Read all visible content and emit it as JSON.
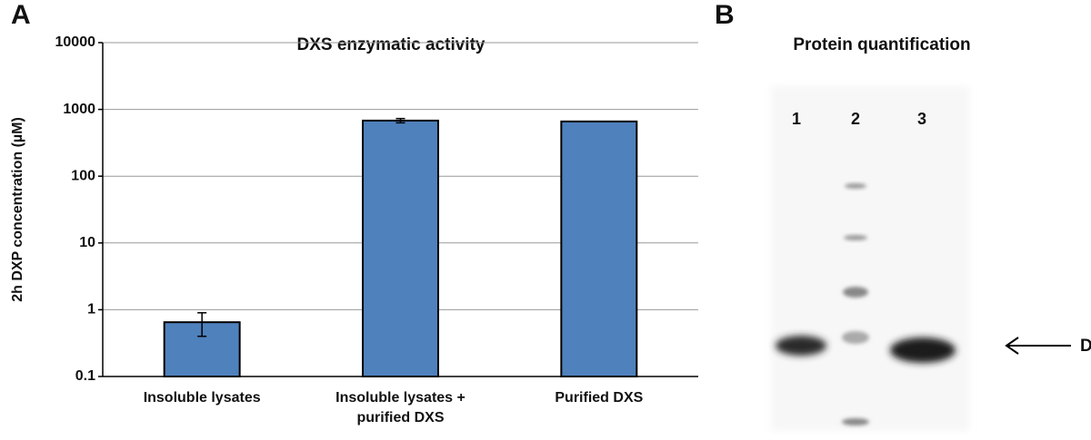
{
  "panel_labels": [
    "A",
    "B"
  ],
  "chart_data": {
    "type": "bar",
    "title": "DXS enzymatic activity",
    "y_label": "2h DXP concentration (µM)",
    "categories": [
      "Insoluble lysates",
      "Insoluble lysates +\npurified DXS",
      "Purified DXS"
    ],
    "values": [
      0.65,
      680,
      660
    ],
    "errors": [
      0.25,
      50,
      null
    ],
    "color": "#4f81bd",
    "log_scale": true,
    "ylim": [
      0.1,
      10000
    ],
    "yticks": [
      0.1,
      1,
      10,
      100,
      1000,
      10000
    ],
    "grid": true
  },
  "gel": {
    "title": "Protein quantification",
    "lanes": [
      "1",
      "2",
      "3"
    ],
    "band_label": "DXS"
  }
}
